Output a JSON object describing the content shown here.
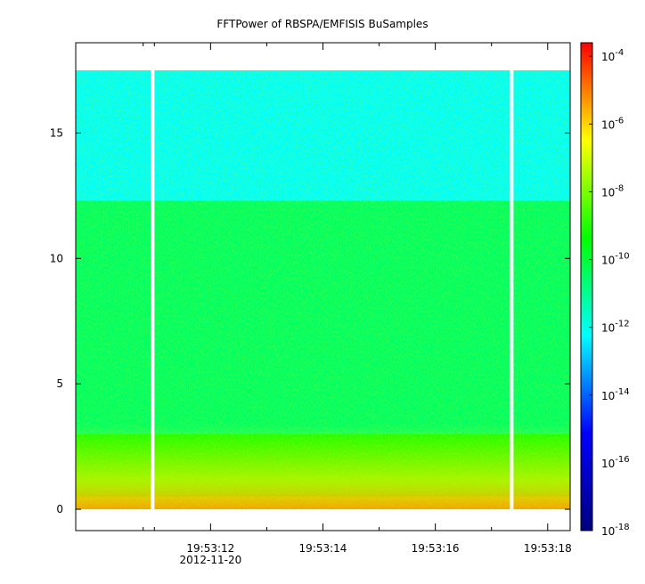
{
  "chart_data": {
    "type": "heatmap",
    "title": "FFTPower of RBSPA/EMFISIS  BuSamples",
    "xlabel": "",
    "ylabel": "",
    "x_ticks": [
      {
        "value": 12,
        "label": "19:53:12",
        "sublabel": "2012-11-20"
      },
      {
        "value": 14,
        "label": "19:53:14",
        "sublabel": ""
      },
      {
        "value": 16,
        "label": "19:53:16",
        "sublabel": ""
      },
      {
        "value": 18,
        "label": "19:53:18",
        "sublabel": ""
      }
    ],
    "x_minor_ticks": [
      10.8,
      11.0,
      13.0,
      15.0,
      17.0
    ],
    "xlim_seconds": [
      9.6,
      18.4
    ],
    "ylim": [
      -0.85,
      18.6
    ],
    "y_ticks": [
      0,
      5,
      10,
      15
    ],
    "data_extent": {
      "x": [
        9.6,
        18.4
      ],
      "y": [
        0,
        17.5
      ]
    },
    "gaps_seconds": [
      10.97,
      17.36
    ],
    "frequency_bands": [
      {
        "y_from": 0.0,
        "y_to": 0.5,
        "log10_power": -8.0
      },
      {
        "y_from": 0.5,
        "y_to": 3.0,
        "log10_power": -9.3
      },
      {
        "y_from": 3.0,
        "y_to": 12.3,
        "log10_power": -10.5
      },
      {
        "y_from": 12.3,
        "y_to": 17.5,
        "log10_power": -12.2
      }
    ],
    "colorbar": {
      "scale": "log",
      "range": [
        -18,
        -3.6
      ],
      "ticks": [
        {
          "exp": -4,
          "base": "10",
          "sup": "-4"
        },
        {
          "exp": -6,
          "base": "10",
          "sup": "-6"
        },
        {
          "exp": -8,
          "base": "10",
          "sup": "-8"
        },
        {
          "exp": -10,
          "base": "10",
          "sup": "-10"
        },
        {
          "exp": -12,
          "base": "10",
          "sup": "-12"
        },
        {
          "exp": -14,
          "base": "10",
          "sup": "-14"
        },
        {
          "exp": -16,
          "base": "10",
          "sup": "-16"
        },
        {
          "exp": -18,
          "base": "10",
          "sup": "-18"
        }
      ],
      "colors": [
        "#000080",
        "#0000ff",
        "#00ffff",
        "#00ff00",
        "#ffff00",
        "#ff0000"
      ]
    }
  }
}
